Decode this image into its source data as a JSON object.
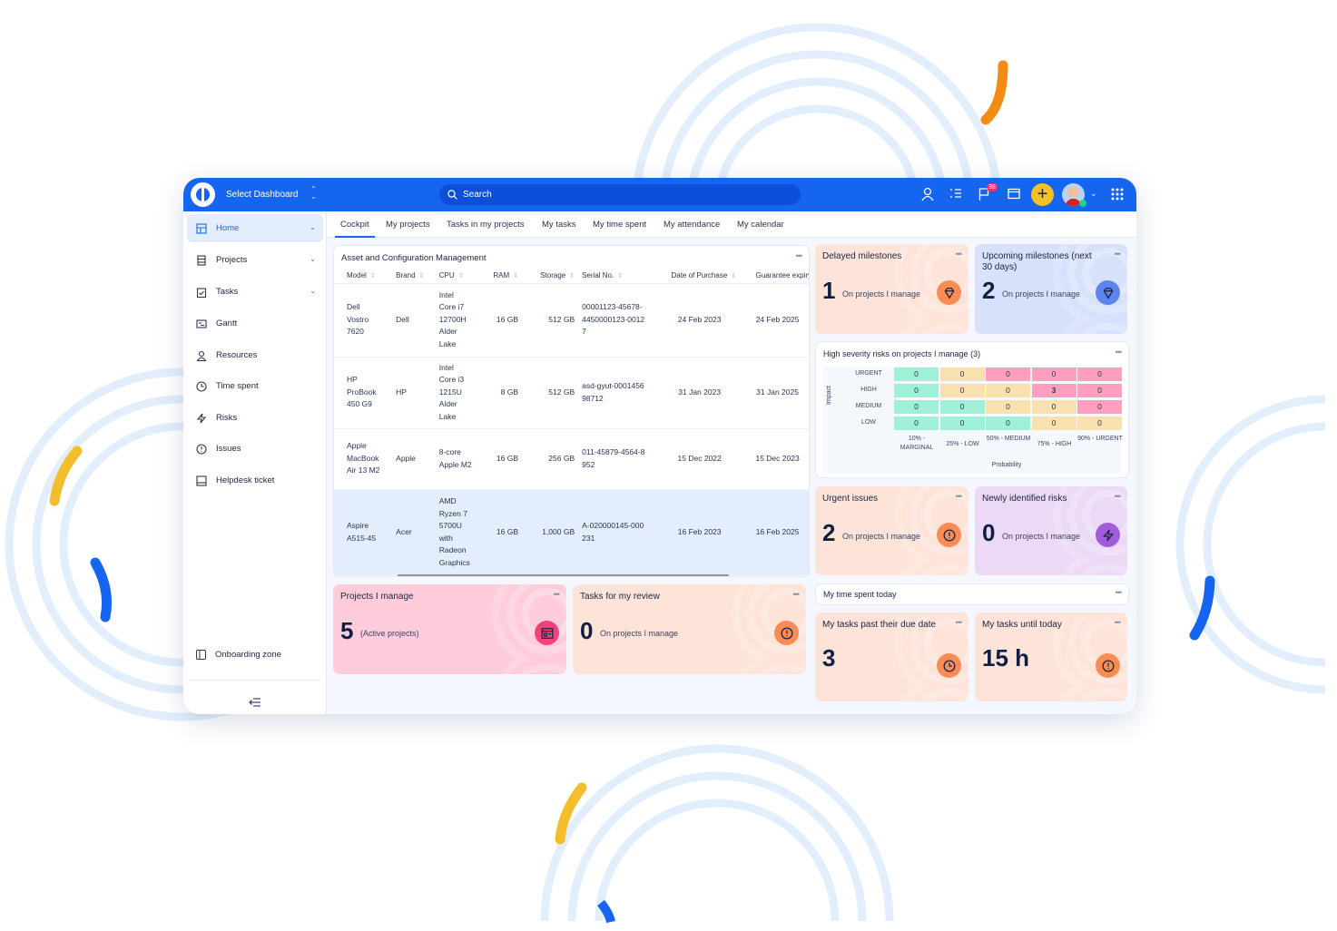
{
  "header": {
    "dashboard_select": "Select Dashboard",
    "search_placeholder": "Search",
    "notifications_count": "38"
  },
  "sidebar": {
    "items": [
      {
        "label": "Home",
        "icon": "dashboard-icon",
        "active": true,
        "expandable": true
      },
      {
        "label": "Projects",
        "icon": "projects-icon",
        "expandable": true
      },
      {
        "label": "Tasks",
        "icon": "tasks-icon",
        "expandable": true
      },
      {
        "label": "Gantt",
        "icon": "gantt-icon"
      },
      {
        "label": "Resources",
        "icon": "person-icon"
      },
      {
        "label": "Time spent",
        "icon": "clock-icon"
      },
      {
        "label": "Risks",
        "icon": "lightning-icon"
      },
      {
        "label": "Issues",
        "icon": "alert-icon"
      },
      {
        "label": "Helpdesk ticket",
        "icon": "ticket-icon"
      }
    ],
    "onboarding": "Onboarding zone"
  },
  "tabs": [
    "Cockpit",
    "My projects",
    "Tasks in my projects",
    "My tasks",
    "My time spent",
    "My attendance",
    "My calendar"
  ],
  "asset_table": {
    "title": "Asset and Configuration Management",
    "columns": [
      "Model",
      "Brand",
      "CPU",
      "RAM",
      "Storage",
      "Serial No.",
      "Date of Purchase",
      "Guarantee expiry"
    ],
    "rows": [
      [
        "Dell Vostro 7620",
        "Dell",
        "Intel Core i7 12700H Alder Lake",
        "16 GB",
        "512 GB",
        "00001123-45678-4450000123-00127",
        "24 Feb 2023",
        "24 Feb 2025"
      ],
      [
        "HP ProBook 450 G9",
        "HP",
        "Intel Core i3 1215U Alder Lake",
        "8 GB",
        "512 GB",
        "asd-gyut-000145698712",
        "31 Jan 2023",
        "31 Jan 2025"
      ],
      [
        "Apple MacBook Air 13 M2",
        "Apple",
        "8-core Apple M2",
        "16 GB",
        "256 GB",
        "011-45879-4564-8952",
        "15 Dec 2022",
        "15 Dec 2023"
      ],
      [
        "Aspire A515-45",
        "Acer",
        "AMD Ryzen 7 5700U with Radeon Graphics",
        "16 GB",
        "1,000 GB",
        "A-020000145-000231",
        "16 Feb 2023",
        "16 Feb 2025"
      ]
    ]
  },
  "kpis": {
    "delayed": {
      "title": "Delayed milestones",
      "value": "1",
      "sub": "On projects I manage",
      "icon": "diamond-icon",
      "bg": "#fde3d8",
      "accent": "#fb8c55"
    },
    "upcoming": {
      "title": "Upcoming milestones (next 30 days)",
      "value": "2",
      "sub": "On projects I manage",
      "icon": "diamond-icon",
      "bg": "#d8e1fb",
      "accent": "#5b84f0"
    },
    "urgent": {
      "title": "Urgent issues",
      "value": "2",
      "sub": "On projects I manage",
      "icon": "alert-icon",
      "bg": "#fde3d8",
      "accent": "#fb8c55"
    },
    "newrisks": {
      "title": "Newly identified risks",
      "value": "0",
      "sub": "On projects I manage",
      "icon": "lightning-icon",
      "bg": "#ebd9f6",
      "accent": "#a25bdc"
    },
    "projects": {
      "title": "Projects I manage",
      "value": "5",
      "sub": "(Active projects)",
      "icon": "project-window-icon",
      "bg": "#ffccdc",
      "accent": "#f5407a"
    },
    "review": {
      "title": "Tasks for my review",
      "value": "0",
      "sub": "On projects I manage",
      "icon": "alert-icon",
      "bg": "#fde3d8",
      "accent": "#fb8c55"
    },
    "pastdue": {
      "title": "My tasks past their due date",
      "value": "3",
      "sub": "",
      "icon": "clock-icon",
      "bg": "#fde3d8",
      "accent": "#fb8c55"
    },
    "untiltoday": {
      "title": "My tasks until today",
      "value": "15 h",
      "sub": "",
      "icon": "alert-icon",
      "bg": "#fde3d8",
      "accent": "#fb8c55"
    }
  },
  "time_spent": {
    "title": "My time spent today"
  },
  "risk_matrix": {
    "title": "High severity risks on projects I manage (3)",
    "y_axis_label": "Impact",
    "x_axis_label": "Probability",
    "impact_levels": [
      "URGENT",
      "HIGH",
      "MEDIUM",
      "LOW"
    ],
    "probability_levels": [
      "10% - MARGINAL",
      "25% - LOW",
      "50% - MEDIUM",
      "75% - HIGH",
      "90% - URGENT"
    ],
    "values": [
      [
        0,
        0,
        0,
        0,
        0
      ],
      [
        0,
        0,
        0,
        3,
        0
      ],
      [
        0,
        0,
        0,
        0,
        0
      ],
      [
        0,
        0,
        0,
        0,
        0
      ]
    ],
    "severity": [
      [
        "g",
        "y",
        "p",
        "p",
        "p"
      ],
      [
        "g",
        "y",
        "y",
        "p",
        "p"
      ],
      [
        "g",
        "g",
        "y",
        "y",
        "p"
      ],
      [
        "g",
        "g",
        "g",
        "y",
        "y"
      ]
    ],
    "colors": {
      "g": "#9ef0d6",
      "y": "#f8e1ae",
      "p": "#ff9fbf"
    }
  }
}
